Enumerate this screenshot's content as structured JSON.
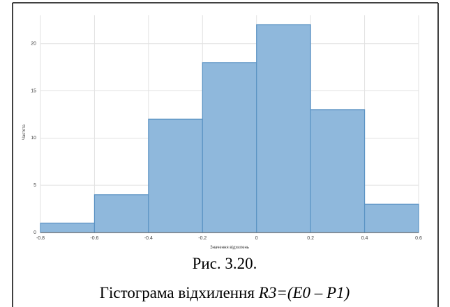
{
  "chart_data": {
    "type": "histogram",
    "xlabel": "Значення відхилень",
    "ylabel": "Частота",
    "bins": [
      -0.8,
      -0.6,
      -0.4,
      -0.2,
      0,
      0.2,
      0.4,
      0.6
    ],
    "values": [
      1,
      4,
      12,
      18,
      22,
      13,
      3
    ],
    "color": "#8fb8dc",
    "edgecolor": "#5b93c4",
    "xlim": [
      -0.8,
      0.6
    ],
    "xticks": [
      -0.8,
      -0.6,
      -0.4,
      -0.2,
      0,
      0.2,
      0.4,
      0.6
    ],
    "ylim": [
      0,
      23
    ],
    "yticks": [
      0,
      5,
      10,
      15,
      20
    ],
    "grid": true
  },
  "caption": {
    "number": "Рис. 3.20.",
    "text": "Гістограма відхилення",
    "formula": "R3=(E0 – P1)"
  }
}
